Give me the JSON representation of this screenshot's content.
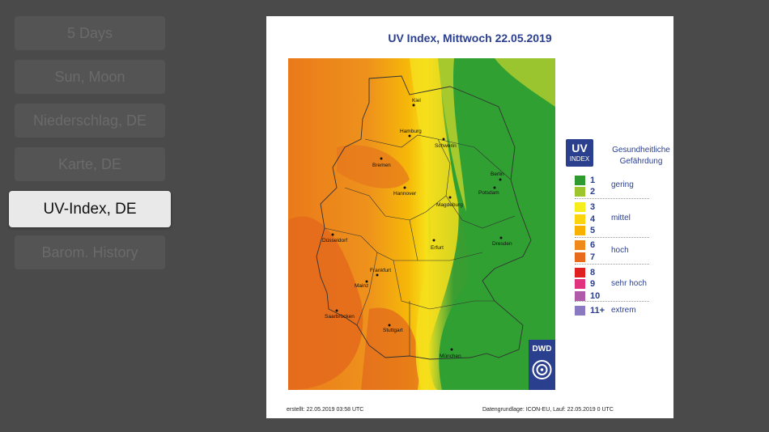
{
  "menu": {
    "items": [
      "5 Days",
      "Sun, Moon",
      "Niederschlag, DE",
      "Karte, DE",
      "UV-Index, DE",
      "Barom. History"
    ],
    "active_index": 4
  },
  "map": {
    "title": "UV Index, Mittwoch 22.05.2019",
    "cities": [
      "Kiel",
      "Hamburg",
      "Schwerin",
      "Bremen",
      "Berlin",
      "Potsdam",
      "Hannover",
      "Magdeburg",
      "Düsseldorf",
      "Dresden",
      "Erfurt",
      "Frankfurt",
      "Mainz",
      "Saarbrücken",
      "Stuttgart",
      "München"
    ],
    "logo_text": "DWD",
    "created": "erstellt: 22.05.2019 03:58 UTC",
    "basis": "Datengrundlage: ICON-EU, Lauf: 22.05.2019 0 UTC"
  },
  "legend": {
    "badge_main": "UV",
    "badge_sub": "INDEX",
    "description": "Gesundheitliche Gefährdung",
    "levels": [
      {
        "num": "1",
        "color": "#2e9a30"
      },
      {
        "num": "2",
        "color": "#9cc62c"
      },
      {
        "num": "3",
        "color": "#f5ee1a"
      },
      {
        "num": "4",
        "color": "#fbd40e"
      },
      {
        "num": "5",
        "color": "#f8b100"
      },
      {
        "num": "6",
        "color": "#ef8a1a"
      },
      {
        "num": "7",
        "color": "#e86a1c"
      },
      {
        "num": "8",
        "color": "#e02020"
      },
      {
        "num": "9",
        "color": "#e0327e"
      },
      {
        "num": "10",
        "color": "#b05aaa"
      },
      {
        "num": "11+",
        "color": "#8a78c0"
      }
    ],
    "categories": [
      "gering",
      "mittel",
      "hoch",
      "sehr hoch",
      "extrem"
    ]
  }
}
